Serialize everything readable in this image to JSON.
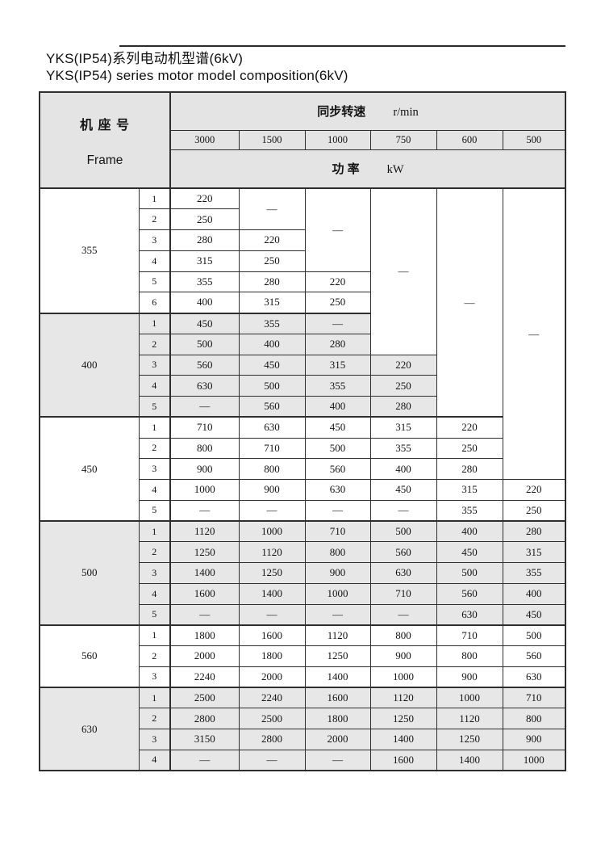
{
  "page": {
    "title_zh": "YKS(IP54)系列电动机型谱(6kV)",
    "title_en": "YKS(IP54) series motor model composition(6kV)"
  },
  "table": {
    "frame_label_zh": "机 座 号",
    "frame_label_en": "Frame",
    "speed_label_zh": "同步转速",
    "speed_unit": "r/min",
    "power_label_zh": "功  率",
    "power_unit": "kW",
    "speed_columns": [
      "3000",
      "1500",
      "1000",
      "750",
      "600",
      "500"
    ],
    "dash": "—",
    "groups": [
      {
        "frame": "355",
        "shade": false,
        "rows": [
          {
            "n": "1",
            "cells": [
              {
                "t": "220"
              },
              {
                "t": "—",
                "rs": 2
              },
              {
                "t": "—",
                "rs": 4
              },
              {
                "t": "—",
                "rs": 8
              },
              {
                "t": "—",
                "rs": 11
              },
              {
                "t": "—",
                "rs": 14
              }
            ]
          },
          {
            "n": "2",
            "cells": [
              {
                "t": "250"
              }
            ]
          },
          {
            "n": "3",
            "cells": [
              {
                "t": "280"
              },
              {
                "t": "220"
              }
            ]
          },
          {
            "n": "4",
            "cells": [
              {
                "t": "315"
              },
              {
                "t": "250"
              }
            ]
          },
          {
            "n": "5",
            "cells": [
              {
                "t": "355"
              },
              {
                "t": "280"
              },
              {
                "t": "220"
              }
            ]
          },
          {
            "n": "6",
            "cells": [
              {
                "t": "400"
              },
              {
                "t": "315"
              },
              {
                "t": "250"
              }
            ]
          }
        ]
      },
      {
        "frame": "400",
        "shade": true,
        "rows": [
          {
            "n": "1",
            "cells": [
              {
                "t": "450"
              },
              {
                "t": "355"
              },
              {
                "t": "—"
              }
            ]
          },
          {
            "n": "2",
            "cells": [
              {
                "t": "500"
              },
              {
                "t": "400"
              },
              {
                "t": "280"
              }
            ]
          },
          {
            "n": "3",
            "cells": [
              {
                "t": "560"
              },
              {
                "t": "450"
              },
              {
                "t": "315"
              },
              {
                "t": "220"
              }
            ]
          },
          {
            "n": "4",
            "cells": [
              {
                "t": "630"
              },
              {
                "t": "500"
              },
              {
                "t": "355"
              },
              {
                "t": "250"
              }
            ]
          },
          {
            "n": "5",
            "cells": [
              {
                "t": "—"
              },
              {
                "t": "560"
              },
              {
                "t": "400"
              },
              {
                "t": "280"
              }
            ]
          }
        ]
      },
      {
        "frame": "450",
        "shade": false,
        "rows": [
          {
            "n": "1",
            "cells": [
              {
                "t": "710"
              },
              {
                "t": "630"
              },
              {
                "t": "450"
              },
              {
                "t": "315"
              },
              {
                "t": "220"
              }
            ]
          },
          {
            "n": "2",
            "cells": [
              {
                "t": "800"
              },
              {
                "t": "710"
              },
              {
                "t": "500"
              },
              {
                "t": "355"
              },
              {
                "t": "250"
              }
            ]
          },
          {
            "n": "3",
            "cells": [
              {
                "t": "900"
              },
              {
                "t": "800"
              },
              {
                "t": "560"
              },
              {
                "t": "400"
              },
              {
                "t": "280"
              }
            ]
          },
          {
            "n": "4",
            "cells": [
              {
                "t": "1000"
              },
              {
                "t": "900"
              },
              {
                "t": "630"
              },
              {
                "t": "450"
              },
              {
                "t": "315"
              },
              {
                "t": "220"
              }
            ]
          },
          {
            "n": "5",
            "cells": [
              {
                "t": "—"
              },
              {
                "t": "—"
              },
              {
                "t": "—"
              },
              {
                "t": "—"
              },
              {
                "t": "355"
              },
              {
                "t": "250"
              }
            ]
          }
        ]
      },
      {
        "frame": "500",
        "shade": true,
        "rows": [
          {
            "n": "1",
            "cells": [
              {
                "t": "1120"
              },
              {
                "t": "1000"
              },
              {
                "t": "710"
              },
              {
                "t": "500"
              },
              {
                "t": "400"
              },
              {
                "t": "280"
              }
            ]
          },
          {
            "n": "2",
            "cells": [
              {
                "t": "1250"
              },
              {
                "t": "1120"
              },
              {
                "t": "800"
              },
              {
                "t": "560"
              },
              {
                "t": "450"
              },
              {
                "t": "315"
              }
            ]
          },
          {
            "n": "3",
            "cells": [
              {
                "t": "1400"
              },
              {
                "t": "1250"
              },
              {
                "t": "900"
              },
              {
                "t": "630"
              },
              {
                "t": "500"
              },
              {
                "t": "355"
              }
            ]
          },
          {
            "n": "4",
            "cells": [
              {
                "t": "1600"
              },
              {
                "t": "1400"
              },
              {
                "t": "1000"
              },
              {
                "t": "710"
              },
              {
                "t": "560"
              },
              {
                "t": "400"
              }
            ]
          },
          {
            "n": "5",
            "cells": [
              {
                "t": "—"
              },
              {
                "t": "—"
              },
              {
                "t": "—"
              },
              {
                "t": "—"
              },
              {
                "t": "630"
              },
              {
                "t": "450"
              }
            ]
          }
        ]
      },
      {
        "frame": "560",
        "shade": false,
        "rows": [
          {
            "n": "1",
            "cells": [
              {
                "t": "1800"
              },
              {
                "t": "1600"
              },
              {
                "t": "1120"
              },
              {
                "t": "800"
              },
              {
                "t": "710"
              },
              {
                "t": "500"
              }
            ]
          },
          {
            "n": "2",
            "cells": [
              {
                "t": "2000"
              },
              {
                "t": "1800"
              },
              {
                "t": "1250"
              },
              {
                "t": "900"
              },
              {
                "t": "800"
              },
              {
                "t": "560"
              }
            ]
          },
          {
            "n": "3",
            "cells": [
              {
                "t": "2240"
              },
              {
                "t": "2000"
              },
              {
                "t": "1400"
              },
              {
                "t": "1000"
              },
              {
                "t": "900"
              },
              {
                "t": "630"
              }
            ]
          }
        ]
      },
      {
        "frame": "630",
        "shade": true,
        "rows": [
          {
            "n": "1",
            "cells": [
              {
                "t": "2500"
              },
              {
                "t": "2240"
              },
              {
                "t": "1600"
              },
              {
                "t": "1120"
              },
              {
                "t": "1000"
              },
              {
                "t": "710"
              }
            ]
          },
          {
            "n": "2",
            "cells": [
              {
                "t": "2800"
              },
              {
                "t": "2500"
              },
              {
                "t": "1800"
              },
              {
                "t": "1250"
              },
              {
                "t": "1120"
              },
              {
                "t": "800"
              }
            ]
          },
          {
            "n": "3",
            "cells": [
              {
                "t": "3150"
              },
              {
                "t": "2800"
              },
              {
                "t": "2000"
              },
              {
                "t": "1400"
              },
              {
                "t": "1250"
              },
              {
                "t": "900"
              }
            ]
          },
          {
            "n": "4",
            "cells": [
              {
                "t": "—"
              },
              {
                "t": "—"
              },
              {
                "t": "—"
              },
              {
                "t": "1600"
              },
              {
                "t": "1400"
              },
              {
                "t": "1000"
              }
            ]
          }
        ]
      }
    ]
  },
  "colors": {
    "shade": "#e7e7e7",
    "head_shade": "#e4e4e4",
    "border": "#2e2e2e",
    "text": "#141414",
    "rule": "#2b2b2b"
  }
}
